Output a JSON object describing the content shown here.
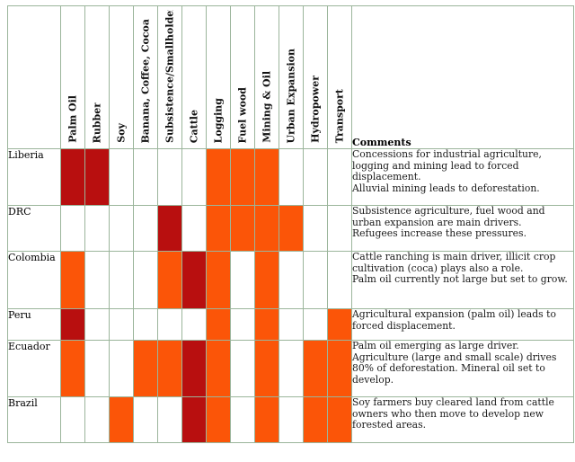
{
  "columns": [
    "Palm Oil",
    "Rubber",
    "Soy",
    "Banana, Coffee, Cocoa",
    "Subsistence/Smallholder",
    "Cattle",
    "Logging",
    "Fuel wood",
    "Mining & Oil",
    "Urban Expansion",
    "Hydropower",
    "Transport"
  ],
  "comments_header": "Comments",
  "colors": {
    "orange": "#fb5508",
    "red": "#b80f0f",
    "grid": "#9bb59b"
  },
  "rows": [
    {
      "country": "Liberia",
      "cells": [
        "r",
        "r",
        "",
        "",
        "",
        "",
        "o",
        "o",
        "o",
        "",
        "",
        ""
      ],
      "comment": [
        "Concessions for industrial agriculture, logging and mining lead to forced displacement.",
        "Alluvial mining leads to deforestation."
      ]
    },
    {
      "country": "DRC",
      "cells": [
        "",
        "",
        "",
        "",
        "r",
        "",
        "o",
        "o",
        "o",
        "o",
        "",
        ""
      ],
      "comment": [
        "Subsistence agriculture, fuel wood and urban expansion are main drivers.",
        "Refugees increase these pressures."
      ]
    },
    {
      "country": "Colombia",
      "cells": [
        "o",
        "",
        "",
        "",
        "o",
        "r",
        "o",
        "",
        "o",
        "",
        "",
        ""
      ],
      "comment": [
        "Cattle ranching is main driver, illicit crop cultivation (coca) plays also a role.",
        "Palm oil currently not large but set to grow."
      ]
    },
    {
      "country": "Peru",
      "cells": [
        "r",
        "",
        "",
        "",
        "",
        "",
        "o",
        "",
        "o",
        "",
        "",
        "o"
      ],
      "comment": [
        "Agricultural expansion (palm oil) leads to forced displacement."
      ]
    },
    {
      "country": "Ecuador",
      "cells": [
        "o",
        "",
        "",
        "o",
        "o",
        "r",
        "o",
        "",
        "o",
        "",
        "o",
        "o"
      ],
      "comment": [
        "Palm oil emerging as large driver. Agriculture (large and small scale) drives 80% of deforestation. Mineral oil set to develop."
      ]
    },
    {
      "country": "Brazil",
      "cells": [
        "",
        "",
        "o",
        "",
        "",
        "r",
        "o",
        "",
        "o",
        "",
        "o",
        "o"
      ],
      "comment": [
        "Soy farmers buy cleared land from cattle owners who then move to develop new forested areas."
      ]
    }
  ]
}
